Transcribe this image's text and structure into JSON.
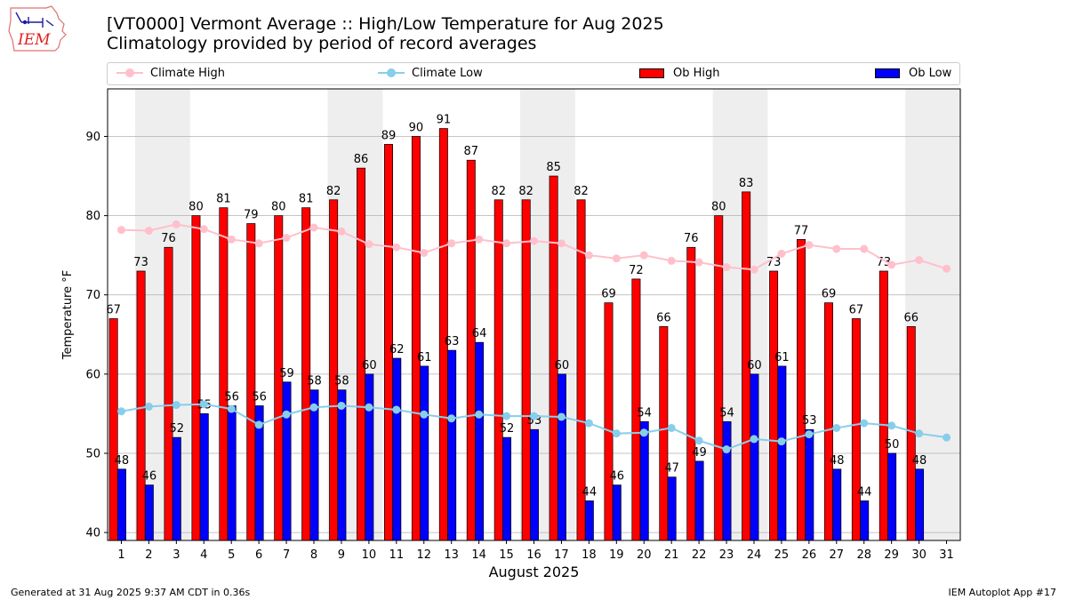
{
  "header": {
    "logo_text": "IEM",
    "title": "[VT0000] Vermont Average :: High/Low Temperature for Aug 2025",
    "subtitle": "Climatology provided by period of record averages"
  },
  "legend": {
    "climate_high": "Climate High",
    "climate_low": "Climate Low",
    "ob_high": "Ob High",
    "ob_low": "Ob Low"
  },
  "footer": {
    "generated": "Generated at 31 Aug 2025 9:37 AM CDT in 0.36s",
    "app": "IEM Autoplot App #17"
  },
  "colors": {
    "ob_high": "#ff0000",
    "ob_low": "#0000ff",
    "climate_high": "#ffc0cb",
    "climate_low": "#87ceeb",
    "weekend_shade": "#eeeeee",
    "grid": "#b0b0b0"
  },
  "chart_data": {
    "type": "bar",
    "title": "[VT0000] Vermont Average :: High/Low Temperature for Aug 2025",
    "subtitle": "Climatology provided by period of record averages",
    "xlabel": "August 2025",
    "ylabel": "Temperature °F",
    "ylim": [
      39,
      96
    ],
    "yticks": [
      40,
      50,
      60,
      70,
      80,
      90
    ],
    "grid": "horizontal",
    "legend_position": "top",
    "categories": [
      "1",
      "2",
      "3",
      "4",
      "5",
      "6",
      "7",
      "8",
      "9",
      "10",
      "11",
      "12",
      "13",
      "14",
      "15",
      "16",
      "17",
      "18",
      "19",
      "20",
      "21",
      "22",
      "23",
      "24",
      "25",
      "26",
      "27",
      "28",
      "29",
      "30",
      "31"
    ],
    "shaded_days": [
      [
        2,
        3
      ],
      [
        9,
        10
      ],
      [
        16,
        17
      ],
      [
        23,
        24
      ],
      [
        30,
        31
      ]
    ],
    "series": [
      {
        "name": "Ob High",
        "kind": "bar",
        "values": [
          67,
          73,
          76,
          80,
          81,
          79,
          80,
          81,
          82,
          86,
          89,
          90,
          91,
          87,
          82,
          82,
          85,
          82,
          69,
          72,
          66,
          76,
          80,
          83,
          73,
          77,
          69,
          67,
          73,
          66,
          null
        ]
      },
      {
        "name": "Ob Low",
        "kind": "bar",
        "values": [
          48,
          46,
          52,
          55,
          56,
          56,
          59,
          58,
          58,
          60,
          62,
          61,
          63,
          64,
          52,
          53,
          60,
          44,
          46,
          54,
          47,
          49,
          54,
          60,
          61,
          53,
          48,
          44,
          50,
          48,
          null
        ]
      },
      {
        "name": "Climate High",
        "kind": "line",
        "values": [
          78.2,
          78.1,
          78.9,
          78.3,
          77.0,
          76.5,
          77.2,
          78.5,
          78.0,
          76.4,
          76.0,
          75.3,
          76.5,
          77.0,
          76.5,
          76.8,
          76.5,
          75.0,
          74.6,
          75.0,
          74.3,
          74.1,
          73.5,
          73.2,
          75.2,
          76.3,
          75.8,
          75.8,
          73.8,
          74.4,
          73.3
        ]
      },
      {
        "name": "Climate Low",
        "kind": "line",
        "values": [
          55.3,
          55.9,
          56.1,
          56.2,
          55.6,
          53.6,
          54.9,
          55.8,
          56.0,
          55.8,
          55.5,
          54.9,
          54.4,
          54.9,
          54.7,
          54.7,
          54.6,
          53.8,
          52.5,
          52.6,
          53.2,
          51.6,
          50.5,
          51.8,
          51.5,
          52.4,
          53.2,
          53.8,
          53.5,
          52.5,
          52.0
        ]
      }
    ]
  }
}
